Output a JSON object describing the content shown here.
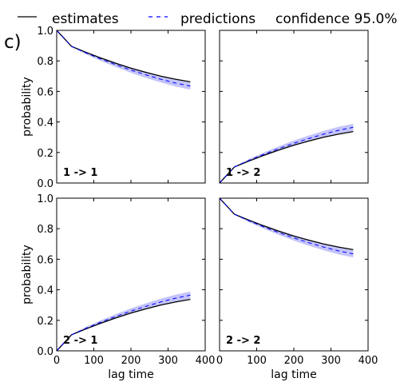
{
  "panel_label": "c)",
  "legend": {
    "estimates": "estimates",
    "predictions": "predictions",
    "confidence": "confidence 95.0%"
  },
  "colors": {
    "estimates": "#000000",
    "predictions": "#0000ff",
    "confidence_band": "#b0b0f8"
  },
  "chart_data": [
    {
      "type": "line",
      "panel_label": "1 -> 1",
      "xlabel": "",
      "ylabel": "probability",
      "xlim": [
        0,
        400
      ],
      "ylim": [
        0,
        1
      ],
      "x_ticks": [],
      "y_ticks": [
        "0.0",
        "0.2",
        "0.4",
        "0.6",
        "0.8",
        "1.0"
      ],
      "x": [
        0,
        40,
        80,
        120,
        160,
        200,
        240,
        280,
        320,
        360
      ],
      "series": [
        {
          "name": "estimates",
          "values": [
            1.0,
            0.895,
            0.855,
            0.818,
            0.783,
            0.752,
            0.725,
            0.7,
            0.68,
            0.663
          ]
        },
        {
          "name": "predictions",
          "values": [
            1.0,
            0.895,
            0.851,
            0.811,
            0.774,
            0.74,
            0.709,
            0.68,
            0.655,
            0.635
          ]
        }
      ],
      "confidence_lower": [
        1.0,
        0.891,
        0.842,
        0.799,
        0.759,
        0.722,
        0.689,
        0.659,
        0.632,
        0.612
      ],
      "confidence_upper": [
        1.0,
        0.899,
        0.86,
        0.823,
        0.789,
        0.758,
        0.729,
        0.702,
        0.678,
        0.658
      ]
    },
    {
      "type": "line",
      "panel_label": "1 -> 2",
      "xlabel": "",
      "ylabel": "",
      "xlim": [
        0,
        400
      ],
      "ylim": [
        0,
        1
      ],
      "x_ticks": [],
      "y_ticks": [],
      "x": [
        0,
        40,
        80,
        120,
        160,
        200,
        240,
        280,
        320,
        360
      ],
      "series": [
        {
          "name": "estimates",
          "values": [
            0.0,
            0.105,
            0.145,
            0.182,
            0.217,
            0.248,
            0.275,
            0.3,
            0.32,
            0.337
          ]
        },
        {
          "name": "predictions",
          "values": [
            0.0,
            0.105,
            0.149,
            0.189,
            0.226,
            0.26,
            0.291,
            0.32,
            0.345,
            0.365
          ]
        }
      ],
      "confidence_lower": [
        0.0,
        0.101,
        0.14,
        0.177,
        0.211,
        0.242,
        0.271,
        0.298,
        0.322,
        0.342
      ],
      "confidence_upper": [
        0.0,
        0.109,
        0.158,
        0.201,
        0.241,
        0.278,
        0.311,
        0.341,
        0.368,
        0.388
      ]
    },
    {
      "type": "line",
      "panel_label": "2 -> 1",
      "xlabel": "lag time",
      "ylabel": "probability",
      "xlim": [
        0,
        400
      ],
      "ylim": [
        0,
        1
      ],
      "x_ticks": [
        "0",
        "100",
        "200",
        "300",
        "400"
      ],
      "y_ticks": [
        "0.0",
        "0.2",
        "0.4",
        "0.6",
        "0.8",
        "1.0"
      ],
      "x": [
        0,
        40,
        80,
        120,
        160,
        200,
        240,
        280,
        320,
        360
      ],
      "series": [
        {
          "name": "estimates",
          "values": [
            0.0,
            0.105,
            0.145,
            0.182,
            0.217,
            0.248,
            0.275,
            0.3,
            0.32,
            0.337
          ]
        },
        {
          "name": "predictions",
          "values": [
            0.0,
            0.105,
            0.149,
            0.189,
            0.226,
            0.26,
            0.291,
            0.32,
            0.345,
            0.365
          ]
        }
      ],
      "confidence_lower": [
        0.0,
        0.101,
        0.14,
        0.177,
        0.211,
        0.242,
        0.271,
        0.298,
        0.322,
        0.342
      ],
      "confidence_upper": [
        0.0,
        0.109,
        0.158,
        0.201,
        0.241,
        0.278,
        0.311,
        0.341,
        0.368,
        0.388
      ]
    },
    {
      "type": "line",
      "panel_label": "2 -> 2",
      "xlabel": "lag time",
      "ylabel": "",
      "xlim": [
        0,
        400
      ],
      "ylim": [
        0,
        1
      ],
      "x_ticks": [
        "0",
        "100",
        "200",
        "300",
        "400"
      ],
      "y_ticks": [],
      "x": [
        0,
        40,
        80,
        120,
        160,
        200,
        240,
        280,
        320,
        360
      ],
      "series": [
        {
          "name": "estimates",
          "values": [
            1.0,
            0.895,
            0.855,
            0.818,
            0.783,
            0.752,
            0.725,
            0.7,
            0.68,
            0.663
          ]
        },
        {
          "name": "predictions",
          "values": [
            1.0,
            0.895,
            0.851,
            0.811,
            0.774,
            0.74,
            0.709,
            0.68,
            0.655,
            0.635
          ]
        }
      ],
      "confidence_lower": [
        1.0,
        0.891,
        0.842,
        0.799,
        0.759,
        0.722,
        0.689,
        0.659,
        0.632,
        0.612
      ],
      "confidence_upper": [
        1.0,
        0.899,
        0.86,
        0.823,
        0.789,
        0.758,
        0.729,
        0.702,
        0.678,
        0.658
      ]
    }
  ]
}
